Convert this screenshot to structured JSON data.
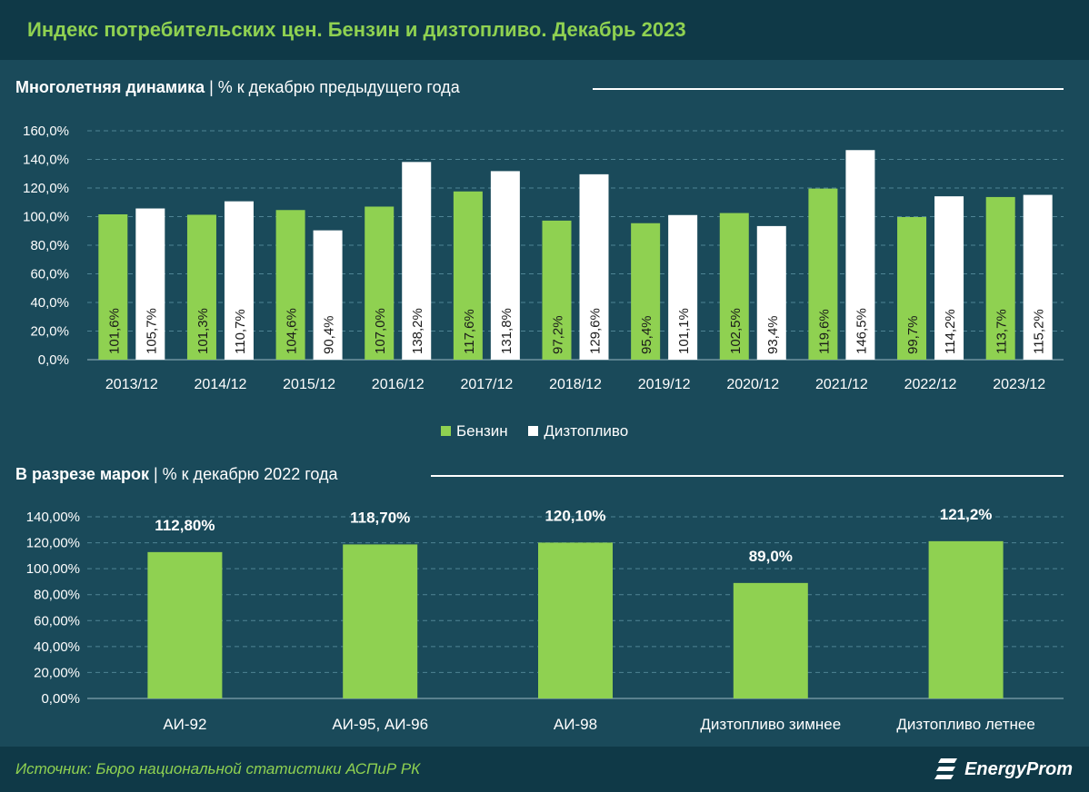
{
  "header": {
    "title": "Индекс потребительских цен. Бензин и дизтопливо. Декабрь 2023"
  },
  "section1": {
    "title_bold": "Многолетняя динамика",
    "title_rest": " | % к декабрю предыдущего года"
  },
  "section2": {
    "title_bold": "В разрезе марок",
    "title_rest": " | % к декабрю 2022 года"
  },
  "legend": [
    {
      "label": "Бензин",
      "color": "#8fd151"
    },
    {
      "label": "Дизтопливо",
      "color": "#ffffff"
    }
  ],
  "footer": {
    "source": "Источник: Бюро национальной статистики АСПиР РК",
    "logo_text": "EnergyProm"
  },
  "colors": {
    "background": "#1a4a5a",
    "header_band": "#0f3947",
    "accent_green": "#8fd151",
    "gridline": "#4f8494"
  },
  "chart_data": [
    {
      "type": "bar",
      "categories": [
        "2013/12",
        "2014/12",
        "2015/12",
        "2016/12",
        "2017/12",
        "2018/12",
        "2019/12",
        "2020/12",
        "2021/12",
        "2022/12",
        "2023/12"
      ],
      "series": [
        {
          "name": "Бензин",
          "color": "#8fd151",
          "values": [
            101.6,
            101.3,
            104.6,
            107.0,
            117.6,
            97.2,
            95.4,
            102.5,
            119.6,
            99.7,
            113.7
          ],
          "labels": [
            "101,6%",
            "101,3%",
            "104,6%",
            "107,0%",
            "117,6%",
            "97,2%",
            "95,4%",
            "102,5%",
            "119,6%",
            "99,7%",
            "113,7%"
          ]
        },
        {
          "name": "Дизтопливо",
          "color": "#ffffff",
          "values": [
            105.7,
            110.7,
            90.4,
            138.2,
            131.8,
            129.6,
            101.1,
            93.4,
            146.5,
            114.2,
            115.2
          ],
          "labels": [
            "105,7%",
            "110,7%",
            "90,4%",
            "138,2%",
            "131,8%",
            "129,6%",
            "101,1%",
            "93,4%",
            "146,5%",
            "114,2%",
            "115,2%"
          ]
        }
      ],
      "yticks": [
        "0,0%",
        "20,0%",
        "40,0%",
        "60,0%",
        "80,0%",
        "100,0%",
        "120,0%",
        "140,0%",
        "160,0%"
      ],
      "ylim": [
        0,
        160
      ],
      "grid": true,
      "legend_position": "bottom",
      "data_labels": "inside-vertical"
    },
    {
      "type": "bar",
      "categories": [
        "АИ-92",
        "АИ-95, АИ-96",
        "АИ-98",
        "Дизтопливо зимнее",
        "Дизтопливо летнее"
      ],
      "values": [
        112.8,
        118.7,
        120.1,
        89.0,
        121.2
      ],
      "labels": [
        "112,80%",
        "118,70%",
        "120,10%",
        "89,0%",
        "121,2%"
      ],
      "color": "#8fd151",
      "yticks": [
        "0,00%",
        "20,00%",
        "40,00%",
        "60,00%",
        "80,00%",
        "100,00%",
        "120,00%",
        "140,00%"
      ],
      "ylim": [
        0,
        140
      ],
      "grid": true,
      "data_labels": "above"
    }
  ]
}
